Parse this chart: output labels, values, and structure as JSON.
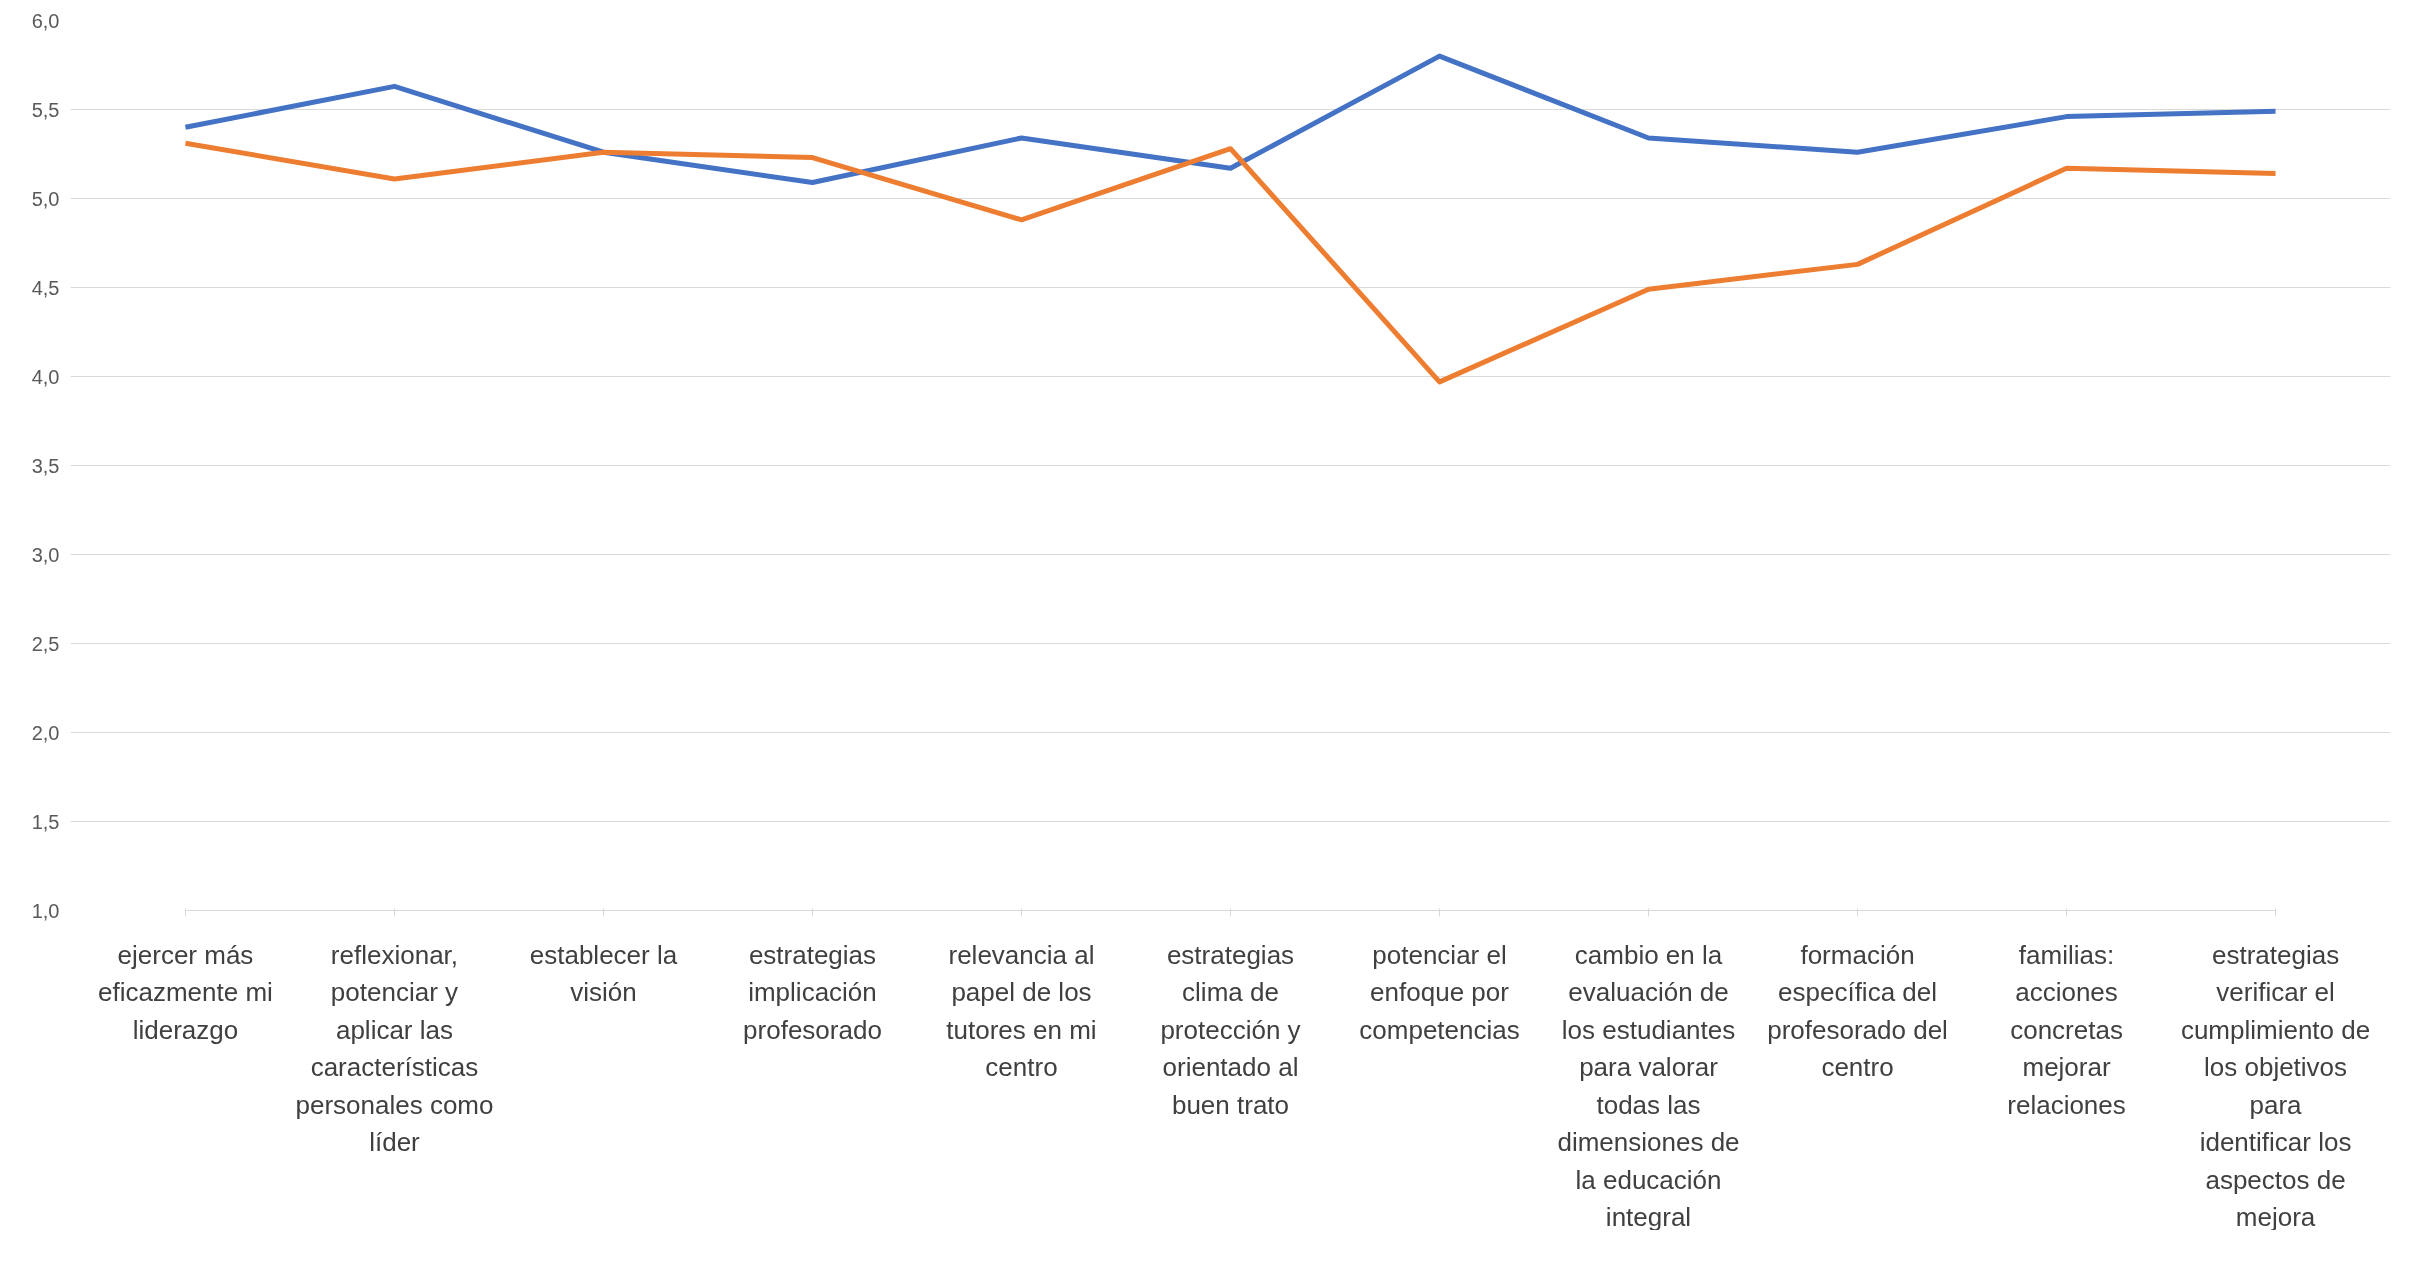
{
  "chart_data": {
    "type": "line",
    "categories": [
      "ejercer más eficazmente mi liderazgo",
      "reflexionar, potenciar y aplicar las características personales como líder",
      "establecer la visión",
      "estrategias implicación profesorado",
      "relevancia al papel de los tutores en mi centro",
      "estrategias clima de protección y orientado al buen trato",
      "potenciar el enfoque por competencias",
      "cambio en la evaluación de los estudiantes para valorar todas las dimensiones de la educación integral",
      "formación específica del profesorado del centro",
      "familias: acciones concretas mejorar relaciones",
      "estrategias verificar el cumplimiento de los objetivos para identificar los aspectos de mejora"
    ],
    "series": [
      {
        "color": "#4472c4",
        "values": [
          5.4,
          5.63,
          5.26,
          5.09,
          5.34,
          5.17,
          5.8,
          5.34,
          5.26,
          5.46,
          5.49
        ]
      },
      {
        "color": "#ed7d31",
        "values": [
          5.31,
          5.11,
          5.26,
          5.23,
          4.88,
          5.28,
          3.97,
          4.49,
          4.63,
          5.17,
          5.14
        ]
      }
    ],
    "ylim": [
      1.0,
      6.0
    ],
    "yticks": [
      {
        "value": 1.0,
        "label": "1,0"
      },
      {
        "value": 1.5,
        "label": "1,5"
      },
      {
        "value": 2.0,
        "label": "2,0"
      },
      {
        "value": 2.5,
        "label": "2,5"
      },
      {
        "value": 3.0,
        "label": "3,0"
      },
      {
        "value": 3.5,
        "label": "3,5"
      },
      {
        "value": 4.0,
        "label": "4,0"
      },
      {
        "value": 4.5,
        "label": "4,5"
      },
      {
        "value": 5.0,
        "label": "5,0"
      },
      {
        "value": 5.5,
        "label": "5,5"
      },
      {
        "value": 6.0,
        "label": "6,0"
      }
    ],
    "grid": "y",
    "marker": "none",
    "line_style": "solid"
  }
}
